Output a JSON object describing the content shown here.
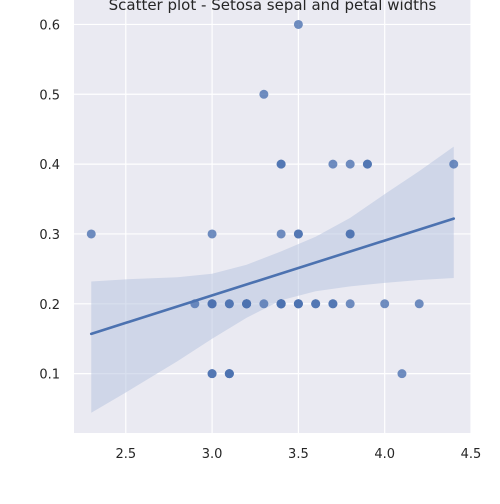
{
  "chart_data": {
    "type": "scatter",
    "title": "Scatter plot - Setosa sepal and petal widths",
    "xlabel": "",
    "ylabel": "",
    "xlim": [
      2.2,
      4.5
    ],
    "ylim": [
      0.015,
      0.635
    ],
    "x_ticks": [
      "2.5",
      "3.0",
      "3.5",
      "4.0",
      "4.5"
    ],
    "y_ticks": [
      "0.1",
      "0.2",
      "0.3",
      "0.4",
      "0.5",
      "0.6"
    ],
    "grid": true,
    "legend": "none",
    "colors": {
      "background": "#eaeaf2",
      "grid": "#ffffff",
      "points": "#4c72b0",
      "line": "#4c72b0",
      "band": "#b8c4e0"
    },
    "points": [
      {
        "x": 3.5,
        "y": 0.2
      },
      {
        "x": 3.0,
        "y": 0.2
      },
      {
        "x": 3.2,
        "y": 0.2
      },
      {
        "x": 3.1,
        "y": 0.2
      },
      {
        "x": 3.6,
        "y": 0.2
      },
      {
        "x": 3.9,
        "y": 0.4
      },
      {
        "x": 3.4,
        "y": 0.3
      },
      {
        "x": 3.4,
        "y": 0.2
      },
      {
        "x": 2.9,
        "y": 0.2
      },
      {
        "x": 3.1,
        "y": 0.1
      },
      {
        "x": 3.7,
        "y": 0.2
      },
      {
        "x": 3.4,
        "y": 0.2
      },
      {
        "x": 3.0,
        "y": 0.1
      },
      {
        "x": 3.0,
        "y": 0.1
      },
      {
        "x": 4.0,
        "y": 0.2
      },
      {
        "x": 4.4,
        "y": 0.4
      },
      {
        "x": 3.9,
        "y": 0.4
      },
      {
        "x": 3.5,
        "y": 0.3
      },
      {
        "x": 3.8,
        "y": 0.3
      },
      {
        "x": 3.8,
        "y": 0.3
      },
      {
        "x": 3.4,
        "y": 0.2
      },
      {
        "x": 3.7,
        "y": 0.4
      },
      {
        "x": 3.6,
        "y": 0.2
      },
      {
        "x": 3.3,
        "y": 0.5
      },
      {
        "x": 3.4,
        "y": 0.2
      },
      {
        "x": 3.0,
        "y": 0.2
      },
      {
        "x": 3.4,
        "y": 0.4
      },
      {
        "x": 3.5,
        "y": 0.2
      },
      {
        "x": 3.4,
        "y": 0.2
      },
      {
        "x": 3.2,
        "y": 0.2
      },
      {
        "x": 3.1,
        "y": 0.2
      },
      {
        "x": 3.4,
        "y": 0.4
      },
      {
        "x": 4.1,
        "y": 0.1
      },
      {
        "x": 4.2,
        "y": 0.2
      },
      {
        "x": 3.1,
        "y": 0.1
      },
      {
        "x": 3.2,
        "y": 0.2
      },
      {
        "x": 3.5,
        "y": 0.2
      },
      {
        "x": 3.1,
        "y": 0.1
      },
      {
        "x": 3.0,
        "y": 0.2
      },
      {
        "x": 3.4,
        "y": 0.2
      },
      {
        "x": 3.5,
        "y": 0.3
      },
      {
        "x": 2.3,
        "y": 0.3
      },
      {
        "x": 3.2,
        "y": 0.2
      },
      {
        "x": 3.5,
        "y": 0.6
      },
      {
        "x": 3.8,
        "y": 0.4
      },
      {
        "x": 3.0,
        "y": 0.3
      },
      {
        "x": 3.8,
        "y": 0.2
      },
      {
        "x": 3.2,
        "y": 0.2
      },
      {
        "x": 3.7,
        "y": 0.2
      },
      {
        "x": 3.3,
        "y": 0.2
      }
    ],
    "regression_line": {
      "x": [
        2.3,
        4.4
      ],
      "y": [
        0.157,
        0.322
      ]
    },
    "confidence_band": {
      "x": [
        2.3,
        2.5,
        2.8,
        3.0,
        3.2,
        3.4,
        3.6,
        3.8,
        4.0,
        4.2,
        4.4
      ],
      "upper": [
        0.232,
        0.235,
        0.238,
        0.243,
        0.256,
        0.275,
        0.296,
        0.323,
        0.357,
        0.39,
        0.425
      ],
      "lower": [
        0.044,
        0.073,
        0.118,
        0.15,
        0.18,
        0.205,
        0.218,
        0.225,
        0.23,
        0.234,
        0.237
      ]
    }
  }
}
